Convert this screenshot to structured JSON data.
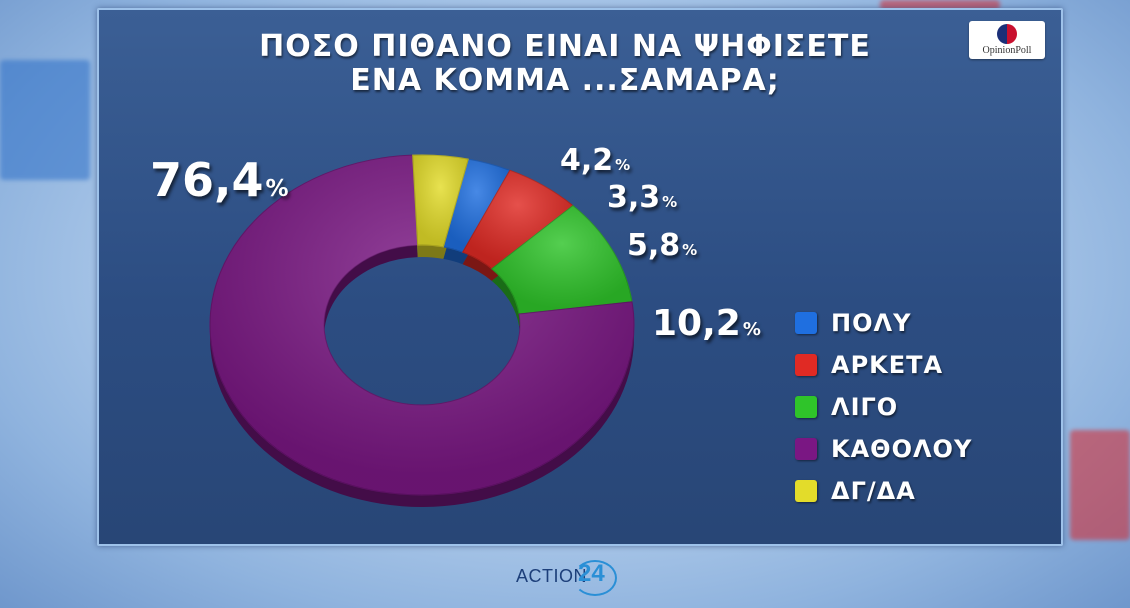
{
  "title_lines": [
    "ΠΟΣΟ ΠΙΘΑΝΟ ΕΙΝΑΙ ΝΑ ΨΗΦΙΣΕΤΕ",
    "ΕΝΑ ΚΟΜΜΑ ...ΣΑΜΑΡΑ;"
  ],
  "logo_text": "OpinionPoll",
  "footer": {
    "brand": "ACTION",
    "number": "24"
  },
  "chart_data": {
    "type": "pie",
    "subtype": "donut",
    "title": "ΠΟΣΟ ΠΙΘΑΝΟ ΕΙΝΑΙ ΝΑ ΨΗΦΙΣΕΤΕ ΕΝΑ ΚΟΜΜΑ ...ΣΑΜΑΡΑ;",
    "unit": "%",
    "legend_position": "right",
    "slices": [
      {
        "label": "ΠΟΛΥ",
        "value": 3.3,
        "display": "3,3",
        "color": "#1f6fe0"
      },
      {
        "label": "ΑΡΚΕΤΑ",
        "value": 5.8,
        "display": "5,8",
        "color": "#e02a24"
      },
      {
        "label": "ΛΙΓΟ",
        "value": 10.2,
        "display": "10,2",
        "color": "#2fc42a"
      },
      {
        "label": "ΚΑΘΟΛΟΥ",
        "value": 76.4,
        "display": "76,4",
        "color": "#7a1783"
      },
      {
        "label": "ΔΓ/ΔΑ",
        "value": 4.2,
        "display": "4,2",
        "color": "#e3dc2a"
      }
    ]
  }
}
